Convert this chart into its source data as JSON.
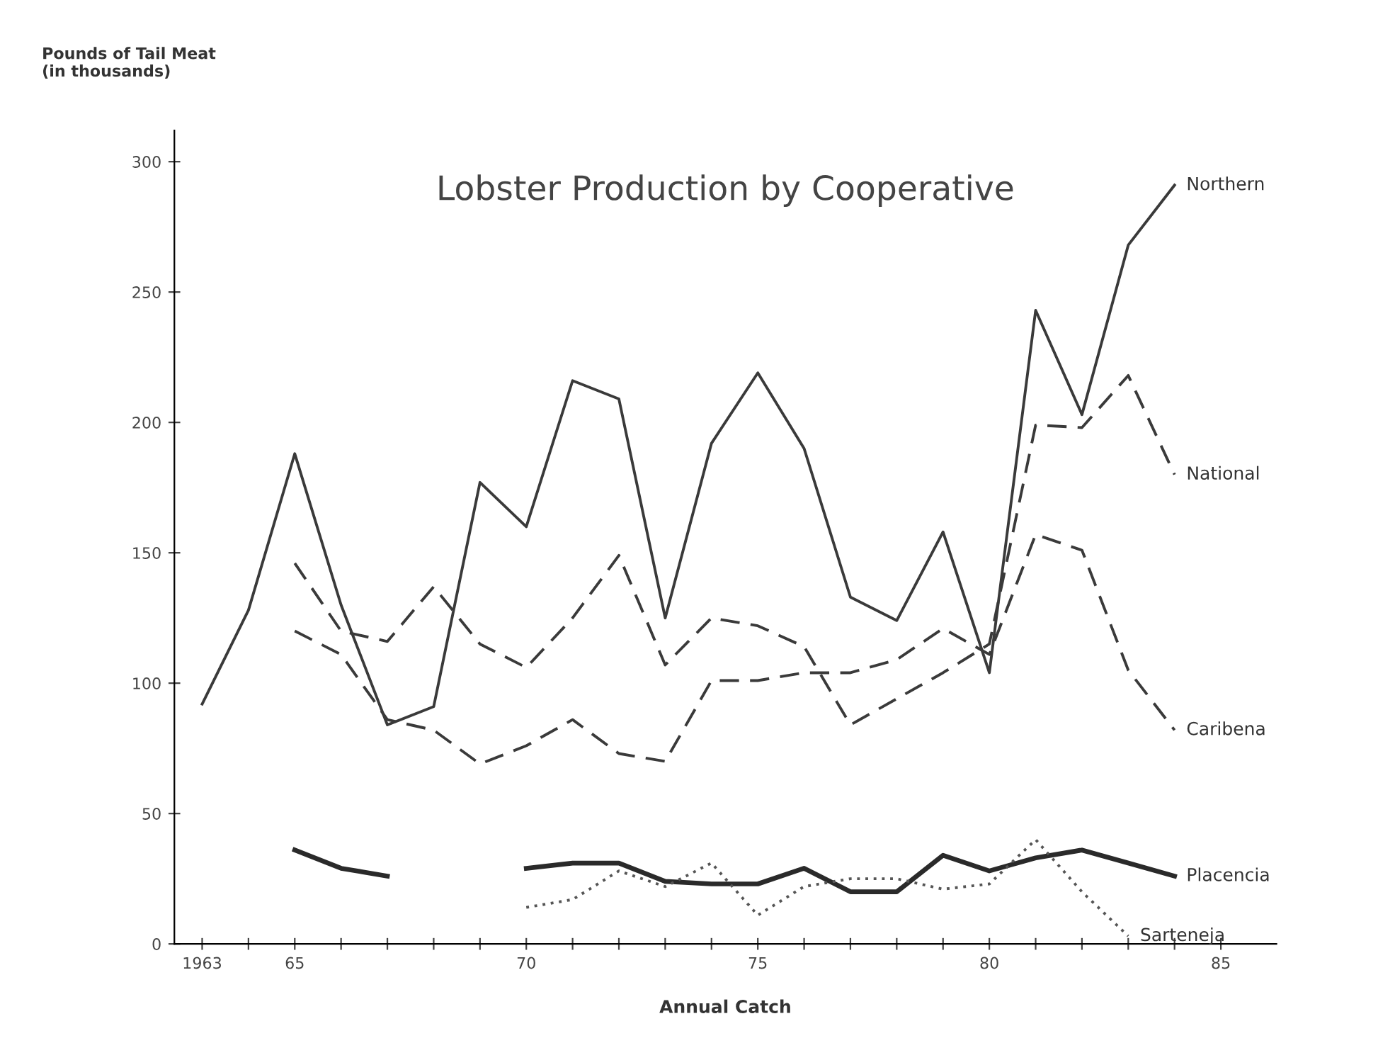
{
  "chart_data": {
    "type": "line",
    "title": "Lobster Production by Cooperative",
    "xlabel": "Annual Catch",
    "ylabel": "Pounds of Tail Meat\n(in thousands)",
    "x": [
      1963,
      1964,
      1965,
      1966,
      1967,
      1968,
      1969,
      1970,
      1971,
      1972,
      1973,
      1974,
      1975,
      1976,
      1977,
      1978,
      1979,
      1980,
      1981,
      1982,
      1983,
      1984
    ],
    "series": [
      {
        "name": "Northern",
        "color": "#3a3a3a",
        "line_style": "solid",
        "values": [
          92,
          128,
          188,
          130,
          84,
          91,
          177,
          160,
          216,
          209,
          125,
          192,
          219,
          190,
          133,
          124,
          158,
          104,
          243,
          203,
          268,
          291
        ]
      },
      {
        "name": "National",
        "color": "#3a3a3a",
        "line_style": "dashed",
        "values": [
          null,
          null,
          146,
          120,
          116,
          137,
          115,
          106,
          125,
          149,
          107,
          125,
          122,
          114,
          84,
          94,
          104,
          115,
          199,
          198,
          218,
          180
        ]
      },
      {
        "name": "Caribena",
        "color": "#3a3a3a",
        "line_style": "dashed",
        "values": [
          null,
          null,
          120,
          111,
          86,
          82,
          69,
          76,
          86,
          73,
          70,
          101,
          101,
          104,
          104,
          109,
          121,
          111,
          157,
          151,
          105,
          82
        ]
      },
      {
        "name": "Placencia",
        "color": "#2a2a2a",
        "line_style": "solid",
        "values": [
          null,
          null,
          36,
          29,
          26,
          null,
          null,
          29,
          31,
          31,
          24,
          23,
          23,
          29,
          20,
          20,
          34,
          28,
          33,
          36,
          31,
          26
        ]
      },
      {
        "name": "Sarteneja",
        "color": "#555555",
        "line_style": "dotted",
        "values": [
          null,
          null,
          null,
          null,
          null,
          null,
          null,
          14,
          17,
          28,
          22,
          31,
          11,
          22,
          25,
          25,
          21,
          23,
          40,
          20,
          3,
          null
        ]
      }
    ],
    "xlim": [
      1962.4,
      1986.2
    ],
    "ylim": [
      0,
      312
    ],
    "xticks": [
      {
        "value": 1963,
        "label": "1963"
      },
      {
        "value": 1964,
        "label": null
      },
      {
        "value": 1965,
        "label": "65"
      },
      {
        "value": 1966,
        "label": null
      },
      {
        "value": 1967,
        "label": null
      },
      {
        "value": 1968,
        "label": null
      },
      {
        "value": 1969,
        "label": null
      },
      {
        "value": 1970,
        "label": "70"
      },
      {
        "value": 1971,
        "label": null
      },
      {
        "value": 1972,
        "label": null
      },
      {
        "value": 1973,
        "label": null
      },
      {
        "value": 1974,
        "label": null
      },
      {
        "value": 1975,
        "label": "75"
      },
      {
        "value": 1976,
        "label": null
      },
      {
        "value": 1977,
        "label": null
      },
      {
        "value": 1978,
        "label": null
      },
      {
        "value": 1979,
        "label": null
      },
      {
        "value": 1980,
        "label": "80"
      },
      {
        "value": 1981,
        "label": null
      },
      {
        "value": 1982,
        "label": null
      },
      {
        "value": 1983,
        "label": null
      },
      {
        "value": 1984,
        "label": null
      },
      {
        "value": 1985,
        "label": "85"
      }
    ],
    "yticks": [
      0,
      50,
      100,
      150,
      200,
      250,
      300
    ],
    "grid": false,
    "legend": false,
    "marker": "none"
  }
}
